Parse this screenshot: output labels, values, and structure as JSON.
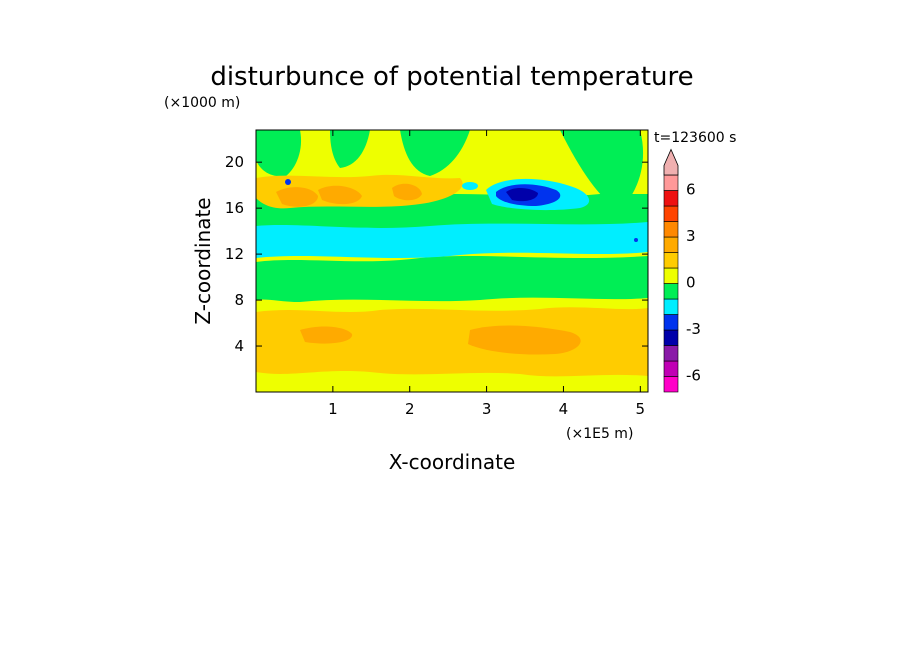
{
  "chart_data": {
    "type": "heatmap",
    "title": "disturbunce of potential temperature",
    "ylabel": "Z-coordinate",
    "ylabel_unit": "(×1000 m)",
    "xlabel": "X-coordinate",
    "xlabel_unit": "(×1E5 m)",
    "time_label": "t=123600 s",
    "xlim": [
      0,
      5.1
    ],
    "ylim": [
      0,
      22.8
    ],
    "xticks": [
      "1",
      "2",
      "3",
      "4",
      "5"
    ],
    "xtick_values": [
      1,
      2,
      3,
      4,
      5
    ],
    "yticks": [
      "4",
      "8",
      "12",
      "16",
      "20"
    ],
    "ytick_values": [
      4,
      8,
      12,
      16,
      20
    ],
    "colorbar": {
      "labels": [
        "6",
        "3",
        "0",
        "-3",
        "-6"
      ],
      "colors": [
        "#ff00c8",
        "#c000b4",
        "#8a1aa8",
        "#0000aa",
        "#0033ee",
        "#00eeff",
        "#00ee55",
        "#eeff00",
        "#ffcc00",
        "#ffaa00",
        "#ff8800",
        "#ff4400",
        "#ee1111",
        "#ff9999",
        "#f0b0b0"
      ]
    },
    "layers": [
      {
        "z_range": [
          0,
          1.5
        ],
        "value": 0,
        "color": "#eeff00"
      },
      {
        "z_range": [
          1.5,
          8
        ],
        "value": 1,
        "color": "#ffcc00"
      },
      {
        "z_range": [
          8,
          9.5
        ],
        "value": 0,
        "color": "#eeff00"
      },
      {
        "z_range": [
          9.5,
          13
        ],
        "value": -1,
        "color": "#00ee55"
      },
      {
        "z_range": [
          13,
          15
        ],
        "value": -2,
        "color": "#00eeff"
      },
      {
        "z_range": [
          15,
          18.5
        ],
        "value": 1,
        "color": "#ffcc00"
      },
      {
        "z_range": [
          18.5,
          22.8
        ],
        "value": 0,
        "color": "#eeff00"
      }
    ],
    "features": [
      {
        "x": 3.5,
        "z": 17,
        "value": -4,
        "color": "#0000aa"
      },
      {
        "x": 0.4,
        "z": 16.5,
        "value": 2,
        "color": "#ffaa00"
      },
      {
        "x": 1.0,
        "z": 16.8,
        "value": 2,
        "color": "#ffaa00"
      },
      {
        "x": 3.6,
        "z": 5.0,
        "value": 2,
        "color": "#ffaa00"
      }
    ]
  }
}
